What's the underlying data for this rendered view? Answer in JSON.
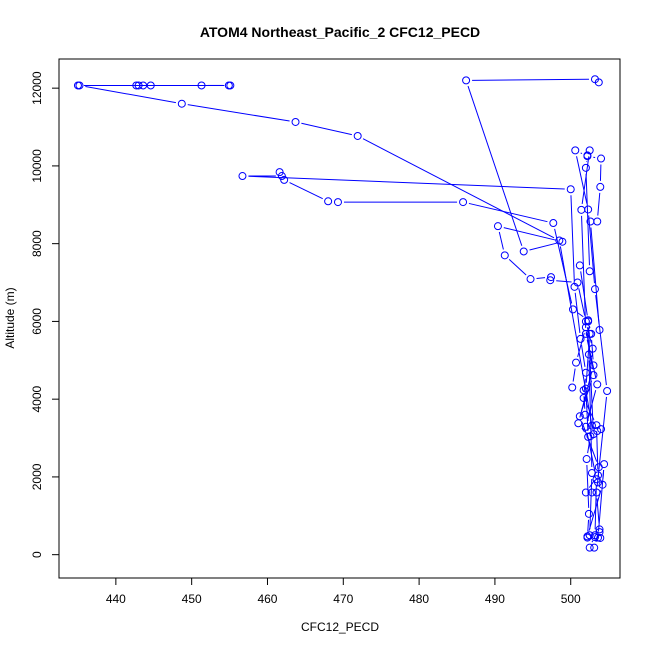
{
  "chart_data": {
    "type": "line",
    "title": "ATOM4 Northeast_Pacific_2 CFC12_PECD",
    "xlabel": "CFC12_PECD",
    "ylabel": "Altitude (m)",
    "xlim": [
      432.5,
      506.5
    ],
    "ylim": [
      -600,
      12750
    ],
    "xticks": [
      440,
      450,
      460,
      470,
      480,
      490,
      500
    ],
    "yticks": [
      0,
      2000,
      4000,
      6000,
      8000,
      10000,
      12000
    ],
    "grid": false,
    "legend": "none",
    "series_color": "#0000ff",
    "markers": "open-circle",
    "points": [
      [
        443.6,
        12070
      ],
      [
        435.0,
        12070
      ],
      [
        442.7,
        12070
      ],
      [
        443.0,
        12070
      ],
      [
        444.6,
        12070
      ],
      [
        451.3,
        12070
      ],
      [
        454.9,
        12070
      ],
      [
        455.1,
        12070
      ],
      [
        435.2,
        12070
      ],
      [
        448.7,
        11600
      ],
      [
        463.7,
        11130
      ],
      [
        471.9,
        10770
      ],
      [
        498.5,
        8080
      ],
      [
        503.0,
        3100
      ],
      [
        502.3,
        6000
      ],
      [
        501.2,
        7440
      ],
      [
        502.5,
        7290
      ],
      [
        502.0,
        9950
      ],
      [
        502.2,
        10270
      ],
      [
        502.5,
        10400
      ],
      [
        501.4,
        8870
      ],
      [
        502.0,
        5680
      ],
      [
        503.5,
        4380
      ],
      [
        502.0,
        3290
      ],
      [
        503.4,
        1940
      ],
      [
        503.2,
        500
      ],
      [
        502.5,
        180
      ],
      [
        503.1,
        180
      ],
      [
        503.8,
        650
      ],
      [
        503.4,
        1600
      ],
      [
        504.8,
        4210
      ],
      [
        503.2,
        6830
      ],
      [
        502.3,
        8880
      ],
      [
        500.6,
        10400
      ],
      [
        502.2,
        10250
      ],
      [
        504.0,
        10190
      ],
      [
        503.9,
        9460
      ],
      [
        503.5,
        8570
      ],
      [
        502.6,
        8570
      ],
      [
        503.8,
        5780
      ],
      [
        502.5,
        5680
      ],
      [
        502.0,
        4270
      ],
      [
        502.3,
        3030
      ],
      [
        501.0,
        3380
      ],
      [
        503.0,
        4870
      ],
      [
        502.7,
        5680
      ],
      [
        502.3,
        6030
      ],
      [
        500.3,
        6310
      ],
      [
        497.7,
        8530
      ],
      [
        485.8,
        9070
      ],
      [
        469.3,
        9070
      ],
      [
        468.0,
        9090
      ],
      [
        462.2,
        9640
      ],
      [
        461.6,
        9840
      ],
      [
        461.9,
        9740
      ],
      [
        456.7,
        9740
      ],
      [
        500.0,
        9400
      ],
      [
        500.5,
        6890
      ],
      [
        501.3,
        5550
      ],
      [
        502.0,
        4680
      ],
      [
        501.7,
        4030
      ],
      [
        503.4,
        3330
      ],
      [
        503.6,
        2040
      ],
      [
        502.0,
        1600
      ],
      [
        502.8,
        1600
      ],
      [
        503.6,
        1860
      ],
      [
        503.7,
        2250
      ],
      [
        501.2,
        3560
      ],
      [
        503.0,
        4620
      ],
      [
        502.0,
        5850
      ],
      [
        500.7,
        4940
      ],
      [
        500.2,
        4300
      ],
      [
        501.7,
        4230
      ],
      [
        501.9,
        3600
      ],
      [
        502.8,
        3320
      ],
      [
        504.0,
        3230
      ],
      [
        503.5,
        3180
      ],
      [
        502.6,
        3050
      ],
      [
        502.1,
        2460
      ],
      [
        502.4,
        1050
      ],
      [
        502.2,
        440
      ],
      [
        503.2,
        450
      ],
      [
        503.6,
        440
      ],
      [
        504.4,
        2330
      ],
      [
        504.2,
        1800
      ],
      [
        502.2,
        470
      ],
      [
        503.8,
        580
      ],
      [
        503.9,
        430
      ],
      [
        502.5,
        500
      ],
      [
        502.8,
        2100
      ],
      [
        502.4,
        5150
      ],
      [
        502.9,
        5300
      ],
      [
        502.0,
        6000
      ],
      [
        500.9,
        7000
      ],
      [
        497.3,
        7060
      ],
      [
        497.4,
        7140
      ],
      [
        494.7,
        7090
      ],
      [
        491.3,
        7700
      ],
      [
        490.4,
        8450
      ],
      [
        498.9,
        8050
      ],
      [
        493.8,
        7800
      ],
      [
        486.2,
        12200
      ],
      [
        503.2,
        12230
      ],
      [
        503.7,
        12150
      ]
    ]
  }
}
